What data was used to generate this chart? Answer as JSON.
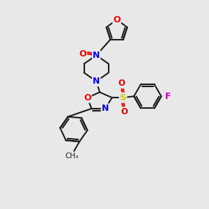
{
  "background_color": "#e8e8e8",
  "bond_color": "#1a1a1a",
  "atom_colors": {
    "N": "#0000ee",
    "O": "#ee0000",
    "F": "#cc00cc",
    "S": "#cccc00",
    "C": "#1a1a1a"
  },
  "figsize": [
    3.0,
    3.0
  ],
  "dpi": 100,
  "lw": 1.5,
  "dbl_sep": 2.8
}
